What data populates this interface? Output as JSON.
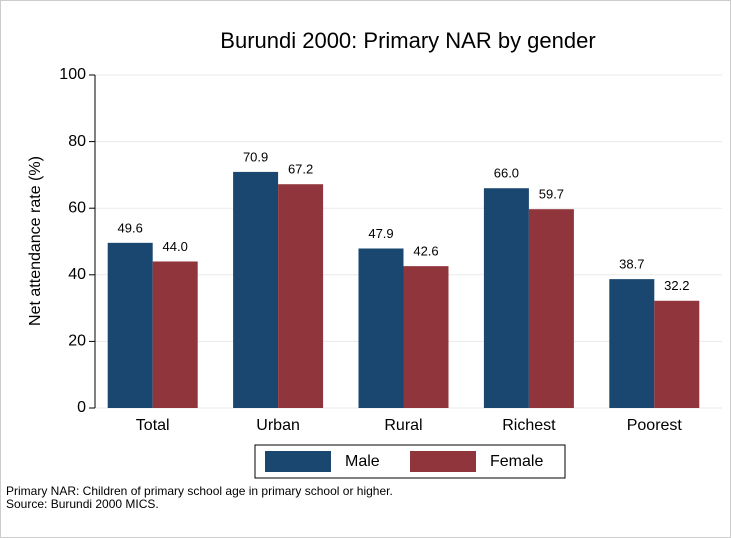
{
  "chart_data": {
    "type": "bar",
    "title": "Burundi 2000: Primary NAR by gender",
    "y_label": "Net attendance rate (%)",
    "categories": [
      "Total",
      "Urban",
      "Rural",
      "Richest",
      "Poorest"
    ],
    "series": [
      {
        "name": "Male",
        "color": "#1a476f",
        "values": [
          49.6,
          70.9,
          47.9,
          66,
          38.7
        ],
        "value_labels": [
          "49.6",
          "70.9",
          "47.9",
          "66.0",
          "38.7"
        ]
      },
      {
        "name": "Female",
        "color": "#90353b",
        "values": [
          44,
          67.2,
          42.6,
          59.7,
          32.2
        ],
        "value_labels": [
          "44.0",
          "67.2",
          "42.6",
          "59.7",
          "32.2"
        ]
      }
    ],
    "ylim": [
      0,
      100
    ],
    "yticks": [
      0,
      20,
      40,
      60,
      80,
      100
    ],
    "grid": true,
    "legend": "bottom",
    "notes": [
      "Primary NAR: Children of primary school age in primary school or higher.",
      "Source: Burundi 2000 MICS."
    ]
  }
}
